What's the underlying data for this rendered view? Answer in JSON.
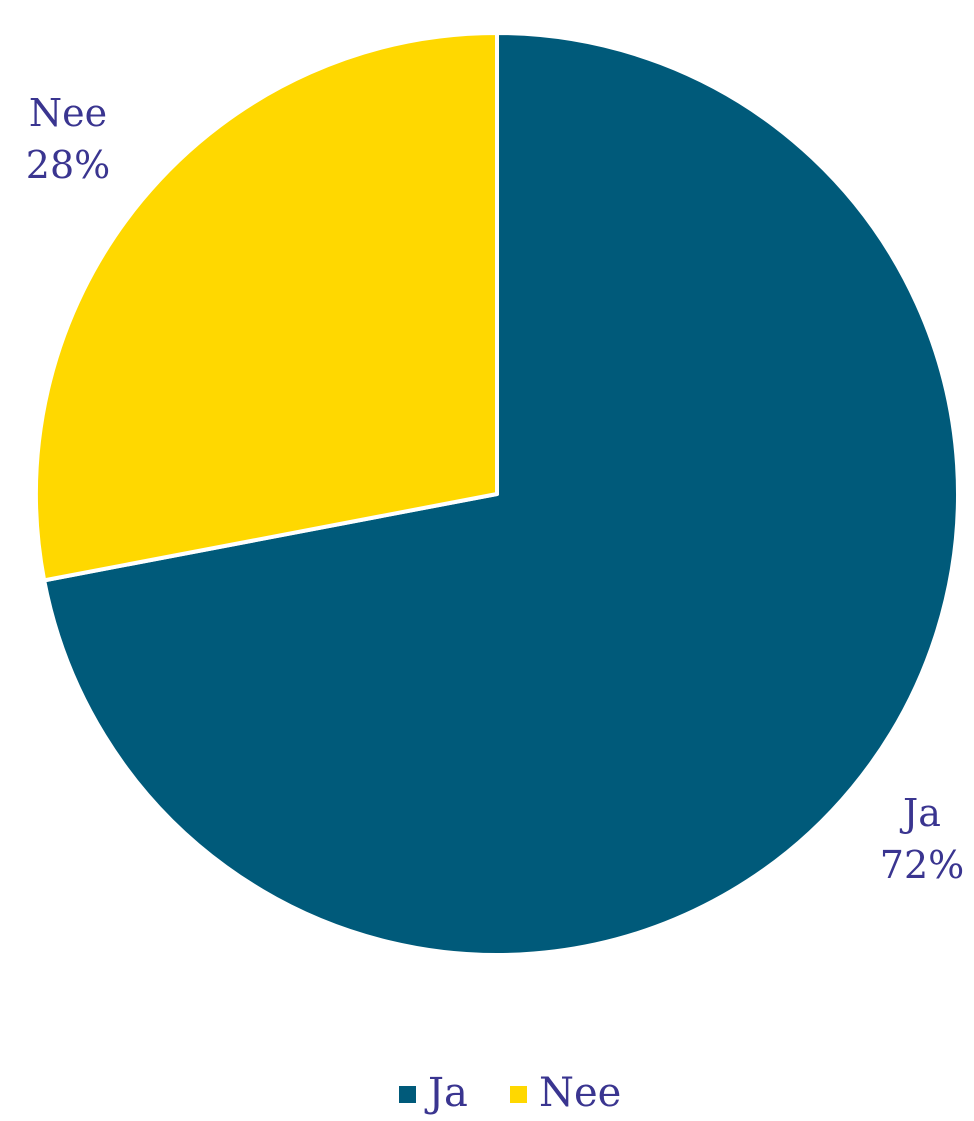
{
  "chart_data": {
    "type": "pie",
    "title": "",
    "slices": [
      {
        "name": "Ja",
        "value": 72,
        "label": "72%",
        "color": "#005a7a"
      },
      {
        "name": "Nee",
        "value": 28,
        "label": "28%",
        "color": "#ffd800"
      }
    ],
    "legend": {
      "placement": "bottom",
      "items": [
        "Ja",
        "Nee"
      ]
    },
    "label_color": "#3a3590",
    "start_angle_deg": 0,
    "direction": "clockwise"
  }
}
